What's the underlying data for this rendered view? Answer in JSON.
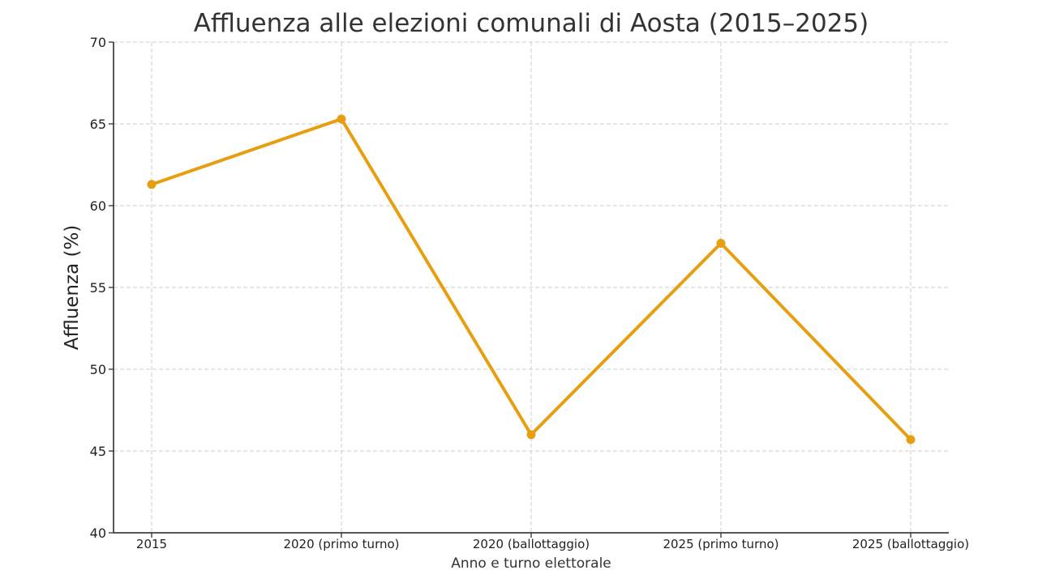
{
  "chart_data": {
    "type": "line",
    "title": "Affluenza alle elezioni comunali di Aosta (2015–2025)",
    "xlabel": "Anno e turno elettorale",
    "ylabel": "Affluenza (%)",
    "categories": [
      "2015",
      "2020 (primo turno)",
      "2020 (ballottaggio)",
      "2025 (primo turno)",
      "2025 (ballottaggio)"
    ],
    "values": [
      61.3,
      65.3,
      46.0,
      57.7,
      45.7
    ],
    "ylim": [
      40,
      70
    ],
    "yticks": [
      "40",
      "45",
      "50",
      "55",
      "60",
      "65",
      "70"
    ],
    "grid": true,
    "line_color": "#E69F12"
  }
}
